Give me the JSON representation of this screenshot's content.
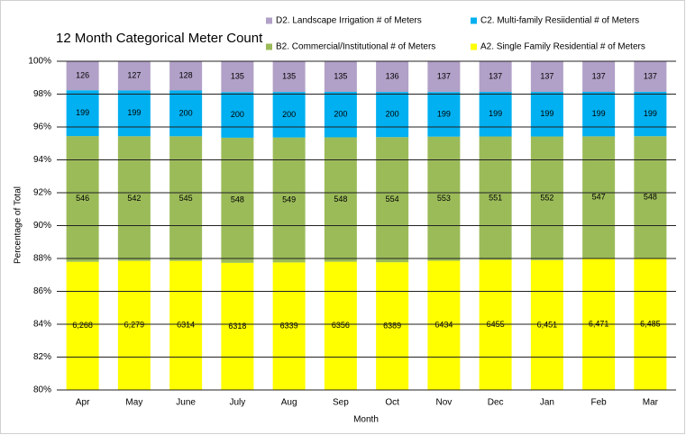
{
  "chart_data": {
    "type": "stacked_percent_bar",
    "title": "12 Month Categorical Meter Count",
    "x_label": "Month",
    "y_label": "Percentage of Total",
    "categories": [
      "Apr",
      "May",
      "June",
      "July",
      "Aug",
      "Sep",
      "Oct",
      "Nov",
      "Dec",
      "Jan",
      "Feb",
      "Mar"
    ],
    "series": [
      {
        "name": "A2. Single Family Residential # of Meters",
        "color": "#ffff00",
        "values": [
          6268,
          6279,
          6314,
          6318,
          6339,
          6356,
          6389,
          6434,
          6455,
          6451,
          6471,
          6485
        ],
        "value_labels": [
          "6,268",
          "6,279",
          "6314",
          "6318",
          "6339",
          "6356",
          "6389",
          "6434",
          "6455",
          "6,451",
          "6,471",
          "6,485"
        ]
      },
      {
        "name": "B2. Commercial/Institutional # of Meters",
        "color": "#9bbb59",
        "values": [
          546,
          542,
          545,
          548,
          549,
          548,
          554,
          553,
          551,
          552,
          547,
          548
        ]
      },
      {
        "name": "C2. Multi-family Resiidential # of Meters",
        "color": "#00b0f0",
        "values": [
          199,
          199,
          200,
          200,
          200,
          200,
          200,
          199,
          199,
          199,
          199,
          199
        ]
      },
      {
        "name": "D2. Landscape Irrigation # of Meters",
        "color": "#b1a0c7",
        "values": [
          126,
          127,
          128,
          135,
          135,
          135,
          136,
          137,
          137,
          137,
          137,
          137
        ]
      }
    ],
    "ylim": [
      80,
      100
    ],
    "yticks": [
      {
        "value": 80,
        "label": "80%"
      },
      {
        "value": 82,
        "label": "82%"
      },
      {
        "value": 84,
        "label": "84%"
      },
      {
        "value": 86,
        "label": "86%"
      },
      {
        "value": 88,
        "label": "88%"
      },
      {
        "value": 90,
        "label": "90%"
      },
      {
        "value": 92,
        "label": "92%"
      },
      {
        "value": 94,
        "label": "94%"
      },
      {
        "value": 96,
        "label": "96%"
      },
      {
        "value": 98,
        "label": "98%"
      },
      {
        "value": 100,
        "label": "100%"
      }
    ],
    "grid": true
  }
}
